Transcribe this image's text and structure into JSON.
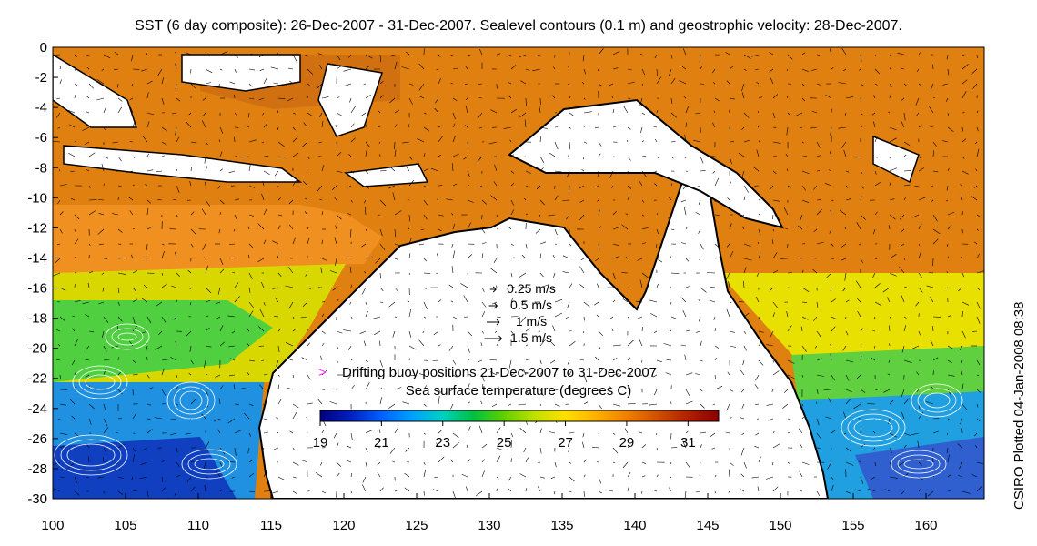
{
  "title": "SST (6 day composite): 26-Dec-2007 - 31-Dec-2007. Sealevel contours (0.1 m) and geostrophic velocity: 28-Dec-2007.",
  "side_label": "CSIRO Plotted 04-Jan-2008 08:38",
  "axes": {
    "x_ticks": [
      "100",
      "105",
      "110",
      "115",
      "120",
      "125",
      "130",
      "135",
      "140",
      "145",
      "150",
      "155",
      "160"
    ],
    "x_values": [
      100,
      105,
      110,
      115,
      120,
      125,
      130,
      135,
      140,
      145,
      150,
      155,
      160
    ],
    "y_ticks": [
      "0",
      "-2",
      "-4",
      "-6",
      "-8",
      "-10",
      "-12",
      "-14",
      "-16",
      "-18",
      "-20",
      "-22",
      "-24",
      "-26",
      "-28",
      "-30"
    ],
    "y_values": [
      0,
      -2,
      -4,
      -6,
      -8,
      -10,
      -12,
      -14,
      -16,
      -18,
      -20,
      -22,
      -24,
      -26,
      -28,
      -30
    ],
    "xlim": [
      100,
      164
    ],
    "ylim": [
      -30,
      0
    ]
  },
  "velocity_legend": [
    {
      "label": "0.25 m/s",
      "speed": 0.25
    },
    {
      "label": "0.5 m/s",
      "speed": 0.5
    },
    {
      "label": "1 m/s",
      "speed": 1
    },
    {
      "label": "1.5 m/s",
      "speed": 1.5
    }
  ],
  "buoy_legend": {
    "symbol": ">",
    "label": "Drifting buoy positions 21-Dec-2007 to 31-Dec-2007",
    "color": "#ff33ff"
  },
  "colorbar": {
    "title": "Sea surface temperature (degrees C)",
    "min": 19,
    "max": 32,
    "ticks": [
      "19",
      "21",
      "23",
      "25",
      "27",
      "29",
      "31"
    ],
    "tick_values": [
      19,
      21,
      23,
      25,
      27,
      29,
      31
    ],
    "colors": [
      "#000080",
      "#0020c0",
      "#0060ff",
      "#00a0ff",
      "#00d0c0",
      "#00c040",
      "#60d000",
      "#c0e000",
      "#ffe000",
      "#ffb000",
      "#f08000",
      "#d05000",
      "#b02000",
      "#8b0000"
    ]
  },
  "colors": {
    "land": "#ffffff",
    "coast": "#000000",
    "arrows": "#000000",
    "contours": "#ffffff"
  }
}
